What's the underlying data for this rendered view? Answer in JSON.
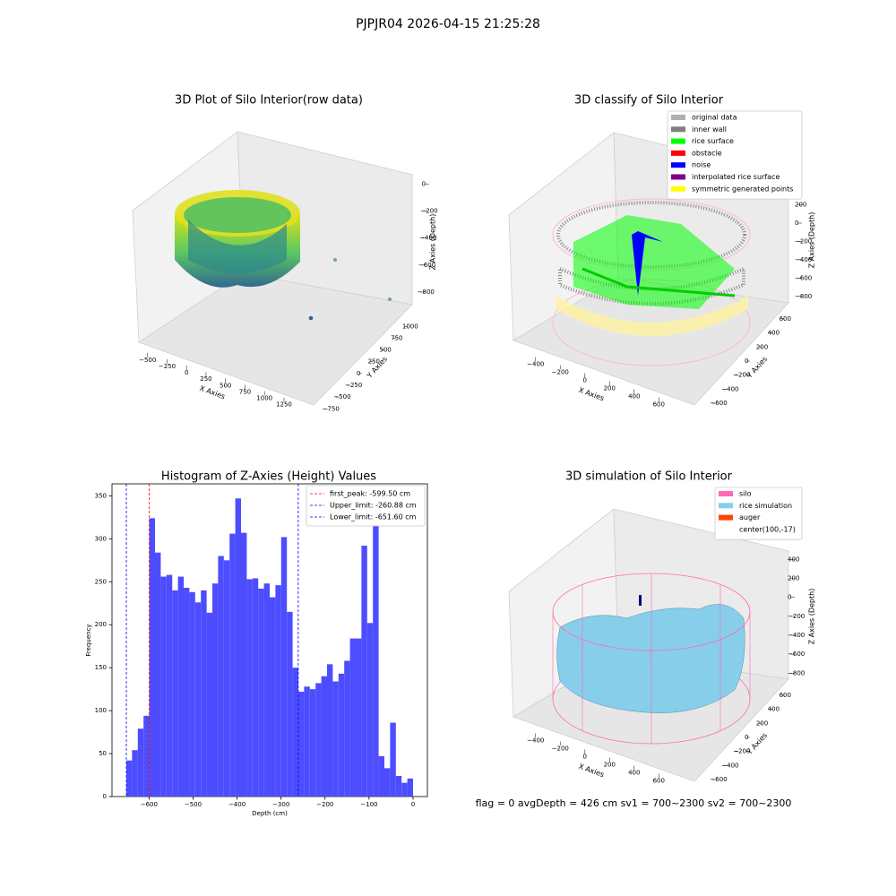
{
  "title": "PJPJR04 2026-04-15 21:25:28",
  "footer": "flag = 0     avgDepth = 426 cm  sv1 = 700~2300  sv2 = 700~2300",
  "chart_data": [
    {
      "type": "scatter3d",
      "title": "3D Plot of Silo Interior(row data)",
      "xlabel": "X Axies",
      "ylabel": "Y Axies",
      "zlabel": "Z Axies (Depth)",
      "xlim": [
        -600,
        1400
      ],
      "xticks": [
        {
          "value": -500,
          "label": "−500"
        },
        {
          "value": -250,
          "label": "−250"
        },
        0,
        250,
        500,
        750,
        1000,
        1250
      ],
      "ylim": [
        -800,
        1100
      ],
      "yticks": [
        {
          "value": -750,
          "label": "−750"
        },
        {
          "value": -500,
          "label": "−500"
        },
        {
          "value": -250,
          "label": "−250"
        },
        0,
        250,
        500,
        750,
        1000
      ],
      "zlim": [
        -900,
        50
      ],
      "zticks": [
        0,
        {
          "value": -200,
          "label": "−200"
        },
        {
          "value": -400,
          "label": "−400"
        },
        {
          "value": -600,
          "label": "−600"
        },
        {
          "value": -800,
          "label": "−800"
        }
      ]
    },
    {
      "type": "scatter3d",
      "title": "3D classify of Silo Interior",
      "xlabel": "X Axies",
      "ylabel": "Y Axies",
      "zlabel": "Z Axies (Depth)",
      "xlim": [
        -500,
        700
      ],
      "xticks": [
        {
          "value": -400,
          "label": "−400"
        },
        {
          "value": -200,
          "label": "−200"
        },
        0,
        200,
        400,
        600
      ],
      "ylim": [
        -700,
        700
      ],
      "yticks": [
        {
          "value": -600,
          "label": "−600"
        },
        {
          "value": -400,
          "label": "−400"
        },
        {
          "value": -200,
          "label": "−200"
        },
        0,
        200,
        400,
        600
      ],
      "zlim": [
        -900,
        450
      ],
      "zticks": [
        200,
        0,
        {
          "value": -200,
          "label": "−200"
        },
        {
          "value": -400,
          "label": "−400"
        },
        {
          "value": -600,
          "label": "−600"
        },
        {
          "value": -800,
          "label": "−800"
        }
      ],
      "series": [
        {
          "name": "original data",
          "color": "#b0b0b0"
        },
        {
          "name": "inner wall",
          "color": "#808080"
        },
        {
          "name": "rice surface",
          "color": "#00ff00"
        },
        {
          "name": "obstacle",
          "color": "#ff0000"
        },
        {
          "name": "noise",
          "color": "#0000ff"
        },
        {
          "name": "interpolated rice surface",
          "color": "#800080"
        },
        {
          "name": "symmetric generated points",
          "color": "#ffff00"
        }
      ]
    },
    {
      "type": "histogram",
      "title": "Histogram of Z-Axies (Height) Values",
      "xlabel": "Depth (cm)",
      "ylabel": "Frequency",
      "color": "#4d4dff",
      "bins": [
        -651.6,
        -638.57,
        -625.54,
        -612.5,
        -599.47,
        -586.44,
        -573.41,
        -560.38,
        -547.34,
        -534.31,
        -521.28,
        -508.25,
        -495.22,
        -482.18,
        -469.15,
        -456.12,
        -443.09,
        -430.06,
        -417.02,
        -403.99,
        -390.96,
        -377.93,
        -364.9,
        -351.86,
        -338.83,
        -325.8,
        -312.77,
        -299.74,
        -286.7,
        -273.67,
        -260.64,
        -247.61,
        -234.58,
        -221.54,
        -208.51,
        -195.48,
        -182.45,
        -169.42,
        -156.38,
        -143.35,
        -130.32,
        -117.29,
        -104.26,
        -91.22,
        -78.19,
        -65.16,
        -52.13,
        -39.1,
        -26.06,
        -13.03,
        0
      ],
      "values": [
        42,
        54,
        79,
        94,
        324,
        284,
        256,
        258,
        240,
        256,
        243,
        238,
        226,
        240,
        214,
        248,
        280,
        275,
        306,
        347,
        307,
        253,
        254,
        242,
        248,
        232,
        246,
        302,
        215,
        150,
        122,
        128,
        125,
        132,
        140,
        154,
        134,
        143,
        158,
        184,
        184,
        292,
        202,
        332,
        47,
        33,
        86,
        24,
        16,
        21
      ],
      "xlim": [
        -684.2,
        32.6
      ],
      "xticks": [
        {
          "value": -600,
          "label": "−600"
        },
        {
          "value": -500,
          "label": "−500"
        },
        {
          "value": -400,
          "label": "−400"
        },
        {
          "value": -300,
          "label": "−300"
        },
        {
          "value": -200,
          "label": "−200"
        },
        {
          "value": -100,
          "label": "−100"
        },
        0
      ],
      "ylim": [
        0,
        364
      ],
      "yticks": [
        0,
        50,
        100,
        150,
        200,
        250,
        300,
        350
      ],
      "vlines": [
        {
          "name": "first_peak: -599.50 cm",
          "value": -599.5,
          "color": "#ff0000"
        },
        {
          "name": "Upper_limit: -260.88 cm",
          "value": -260.88,
          "color": "#0000ff"
        },
        {
          "name": "Lower_limit: -651.60 cm",
          "value": -651.6,
          "color": "#0000ff"
        }
      ]
    },
    {
      "type": "surface3d",
      "title": "3D simulation of Silo Interior",
      "xlabel": "X Axies",
      "ylabel": "Y Axies",
      "zlabel": "Z Axies (Depth)",
      "xlim": [
        -500,
        700
      ],
      "xticks": [
        {
          "value": -400,
          "label": "−400"
        },
        {
          "value": -200,
          "label": "−200"
        },
        0,
        200,
        400,
        600
      ],
      "ylim": [
        -700,
        700
      ],
      "yticks": [
        {
          "value": -600,
          "label": "−600"
        },
        {
          "value": -400,
          "label": "−400"
        },
        {
          "value": -200,
          "label": "−200"
        },
        0,
        200,
        400,
        600
      ],
      "zlim": [
        -900,
        450
      ],
      "zticks": [
        400,
        200,
        0,
        {
          "value": -200,
          "label": "−200"
        },
        {
          "value": -400,
          "label": "−400"
        },
        {
          "value": -600,
          "label": "−600"
        },
        {
          "value": -800,
          "label": "−800"
        }
      ],
      "series": [
        {
          "name": "silo",
          "color": "#ff69b4"
        },
        {
          "name": "rice simulation",
          "color": "#87ceeb"
        },
        {
          "name": "auger",
          "color": "#ff4500"
        },
        {
          "name": "center(100,-17)",
          "color": "#ffffff"
        }
      ]
    }
  ]
}
